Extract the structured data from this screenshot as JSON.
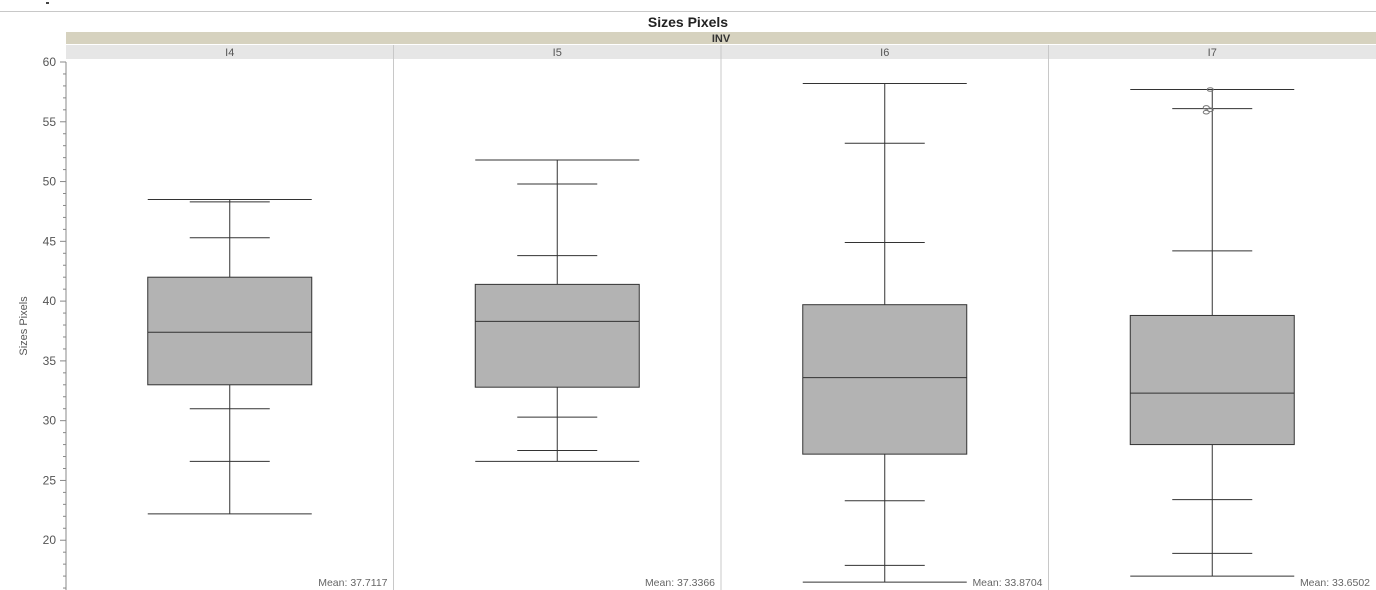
{
  "chart_data": {
    "type": "boxplot",
    "title": "Sizes Pixels",
    "group_label": "INV",
    "ylabel": "Sizes Pixels",
    "xlabel": "",
    "ylim": [
      15,
      60
    ],
    "y_ticks": [
      20,
      25,
      30,
      35,
      40,
      45,
      50,
      55,
      60
    ],
    "colors": {
      "box": "#b3b3b3",
      "header": "#d6d2bf",
      "subheader": "#e6e6e6",
      "line": "#333333"
    },
    "panels": [
      {
        "label": "I4",
        "mean_label": "Mean: 37.7117",
        "whisker_low": 22.2,
        "q1": 33.0,
        "median": 37.4,
        "q3": 42.0,
        "whisker_high": 48.5,
        "quantile_ticks": [
          26.6,
          31.0,
          45.3,
          48.3
        ],
        "outliers": []
      },
      {
        "label": "I5",
        "mean_label": "Mean: 37.3366",
        "whisker_low": 26.6,
        "q1": 32.8,
        "median": 38.3,
        "q3": 41.4,
        "whisker_high": 51.8,
        "quantile_ticks": [
          27.5,
          30.3,
          43.8,
          49.8
        ],
        "outliers": []
      },
      {
        "label": "I6",
        "mean_label": "Mean: 33.8704",
        "whisker_low": 16.5,
        "q1": 27.2,
        "median": 33.6,
        "q3": 39.7,
        "whisker_high": 58.2,
        "quantile_ticks": [
          17.9,
          23.3,
          44.9,
          53.2
        ],
        "outliers": []
      },
      {
        "label": "I7",
        "mean_label": "Mean: 33.6502",
        "whisker_low": 17.0,
        "q1": 28.0,
        "median": 32.3,
        "q3": 38.8,
        "whisker_high": 57.7,
        "quantile_ticks": [
          18.9,
          23.4,
          44.2,
          56.1
        ],
        "outliers": [
          55.8,
          56.0,
          56.2,
          57.7
        ]
      }
    ]
  }
}
